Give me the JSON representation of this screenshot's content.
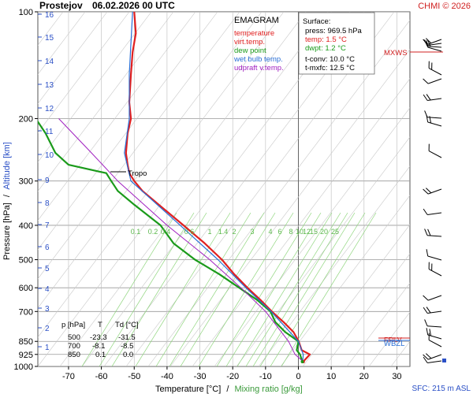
{
  "header": {
    "station": "Prostejov",
    "datetime": "06.02.2026 00 UTC",
    "copyright": "CHMI © 2026"
  },
  "legend": {
    "title": "EMAGRAM",
    "items": [
      {
        "label": "temperature",
        "color": "#e02020"
      },
      {
        "label": "virt.temp.",
        "color": "#e02020"
      },
      {
        "label": "dew point",
        "color": "#1a9a1a"
      },
      {
        "label": "wet bulb temp.",
        "color": "#2a6fd6"
      },
      {
        "label": "udpraft v.temp.",
        "color": "#a020c0"
      }
    ]
  },
  "surface": {
    "title": "Surface:",
    "press": "press: 969.5 hPa",
    "temp": "temp: 1.5 °C",
    "dwpt": "dwpt: 1.2 °C",
    "tconv": "t-conv: 10.0 °C",
    "tmxfc": "t-mxfc: 12.5 °C"
  },
  "levels_table": {
    "headers": [
      "p [hPa]",
      "T",
      "Td [°C]"
    ],
    "rows": [
      [
        "500",
        "-23.3",
        "-31.5"
      ],
      [
        "700",
        "-8.1",
        "-8.5"
      ],
      [
        "850",
        "0.1",
        "0.0"
      ]
    ]
  },
  "labels": {
    "tropo": "Tropo",
    "mxws": "MXWS",
    "ffilv": "FFILV",
    "wbzl": "WBZL",
    "sfc": "SFC: 215 m ASL"
  },
  "axes": {
    "ylabel_pressure": "Pressure [hPa]",
    "ylabel_sep": "/",
    "ylabel_altitude": "Altitude [km]",
    "xlabel_temp": "Temperature [°C]",
    "xlabel_sep": "/",
    "xlabel_mix": "Mixing ratio [g/kg]"
  },
  "colors": {
    "temperature": "#e02020",
    "dewpoint": "#1a9a1a",
    "wetbulb": "#2a6fd6",
    "parcel": "#a020c0",
    "mixing": "#8cd47a",
    "altitude": "#2a4fc6",
    "isotherm": "#bbbbbb",
    "isobar": "#999999"
  },
  "chart_data": {
    "type": "line",
    "title": "EMAGRAM",
    "x_axis": {
      "label": "Temperature [°C]",
      "range": [
        -80,
        35
      ],
      "ticks": [
        -70,
        -60,
        -50,
        -40,
        -30,
        -20,
        -10,
        0,
        10,
        20,
        30
      ]
    },
    "y_axis": {
      "label": "Pressure [hPa]",
      "scale": "log",
      "range": [
        1000,
        100
      ],
      "ticks": [
        100,
        200,
        300,
        400,
        500,
        600,
        700,
        850,
        925,
        1000
      ]
    },
    "altitude_ticks_km": [
      1,
      2,
      3,
      4,
      5,
      6,
      7,
      8,
      9,
      10,
      11,
      12,
      13,
      14,
      15,
      16
    ],
    "mixing_ratio_labels": [
      "0.1",
      "0.2",
      "0.4",
      "0.6",
      "1",
      "1.4",
      "2",
      "3",
      "4",
      "6",
      "8",
      "10",
      "12",
      "15",
      "20",
      "25"
    ],
    "series": [
      {
        "name": "temperature",
        "points": [
          [
            969.5,
            1.5
          ],
          [
            925,
            3.5
          ],
          [
            900,
            1.0
          ],
          [
            850,
            0.1
          ],
          [
            800,
            -1.5
          ],
          [
            750,
            -4.5
          ],
          [
            700,
            -8.1
          ],
          [
            650,
            -11.5
          ],
          [
            600,
            -15.5
          ],
          [
            550,
            -19.5
          ],
          [
            500,
            -23.3
          ],
          [
            450,
            -28.5
          ],
          [
            400,
            -35.0
          ],
          [
            350,
            -42.5
          ],
          [
            320,
            -47.5
          ],
          [
            300,
            -50.0
          ],
          [
            285,
            -51.5
          ],
          [
            270,
            -52.0
          ],
          [
            250,
            -52.5
          ],
          [
            220,
            -52.0
          ],
          [
            200,
            -51.0
          ],
          [
            180,
            -51.5
          ],
          [
            150,
            -51.0
          ],
          [
            130,
            -50.5
          ],
          [
            115,
            -49.5
          ],
          [
            100,
            -50.0
          ]
        ]
      },
      {
        "name": "dew point",
        "points": [
          [
            969.5,
            1.2
          ],
          [
            925,
            0.5
          ],
          [
            900,
            -0.5
          ],
          [
            850,
            0.0
          ],
          [
            800,
            -4.0
          ],
          [
            750,
            -7.0
          ],
          [
            700,
            -8.5
          ],
          [
            650,
            -12.5
          ],
          [
            600,
            -18.0
          ],
          [
            550,
            -24.0
          ],
          [
            500,
            -31.5
          ],
          [
            450,
            -38.0
          ],
          [
            400,
            -42.0
          ],
          [
            350,
            -50.0
          ],
          [
            320,
            -55.0
          ],
          [
            300,
            -57.0
          ],
          [
            285,
            -58.5
          ],
          [
            270,
            -70.0
          ],
          [
            250,
            -74.0
          ],
          [
            220,
            -77.0
          ],
          [
            200,
            -80.0
          ]
        ]
      },
      {
        "name": "wet bulb temp.",
        "points": [
          [
            969.5,
            1.3
          ],
          [
            925,
            1.5
          ],
          [
            850,
            0.0
          ],
          [
            700,
            -8.3
          ],
          [
            600,
            -16.0
          ],
          [
            500,
            -24.5
          ],
          [
            400,
            -36.0
          ],
          [
            300,
            -51.0
          ],
          [
            250,
            -53.0
          ],
          [
            200,
            -51.5
          ],
          [
            150,
            -51.5
          ],
          [
            100,
            -50.5
          ]
        ]
      },
      {
        "name": "udpraft v.temp.",
        "points": [
          [
            969.5,
            1.5
          ],
          [
            925,
            -1.0
          ],
          [
            850,
            -3.0
          ],
          [
            700,
            -10.0
          ],
          [
            600,
            -17.5
          ],
          [
            500,
            -27.0
          ],
          [
            400,
            -40.0
          ],
          [
            300,
            -55.0
          ],
          [
            250,
            -63.0
          ],
          [
            200,
            -73.0
          ]
        ]
      }
    ],
    "grid": true
  }
}
